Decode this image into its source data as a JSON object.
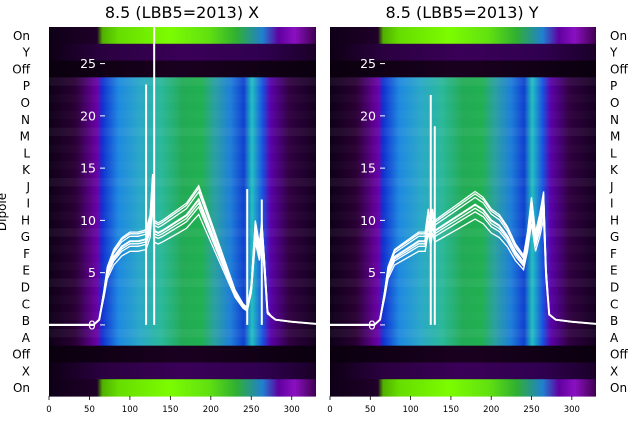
{
  "chart_data": [
    {
      "type": "heatmap",
      "title": "8.5 (LBB5=2013) X",
      "ylabel": "Dipole",
      "xlim": [
        0,
        330
      ],
      "x_ticks": [
        0,
        50,
        100,
        150,
        200,
        250,
        300
      ],
      "row_labels": [
        "On",
        "Y",
        "Off",
        "P",
        "O",
        "N",
        "M",
        "L",
        "K",
        "J",
        "I",
        "H",
        "G",
        "F",
        "E",
        "D",
        "C",
        "B",
        "A",
        "Off",
        "X",
        "On"
      ],
      "overlay_ylim": [
        -6.8,
        28.5
      ],
      "overlay_y_ticks": [
        0,
        5,
        10,
        15,
        20,
        25
      ],
      "overlay_series": {
        "x": [
          0,
          55,
          62,
          68,
          72,
          80,
          90,
          100,
          110,
          120,
          125,
          128,
          130,
          135,
          140,
          150,
          160,
          170,
          180,
          185,
          190,
          200,
          210,
          220,
          230,
          240,
          245,
          250,
          255,
          260,
          263,
          266,
          270,
          275,
          280,
          300,
          330
        ],
        "y": [
          0,
          0,
          0.5,
          3,
          5,
          6.5,
          7.5,
          8,
          8,
          8.2,
          9.5,
          13,
          9,
          8.8,
          9,
          9.5,
          10,
          10.5,
          11.5,
          12,
          11,
          9,
          7,
          5,
          3,
          1.8,
          1.5,
          3.5,
          9,
          7,
          9,
          6,
          1.2,
          0.8,
          0.5,
          0.3,
          0.1
        ],
        "spikes": [
          {
            "x": 120,
            "y": 23
          },
          {
            "x": 130,
            "y": 28.5
          },
          {
            "x": 245,
            "y": 13
          },
          {
            "x": 263,
            "y": 12
          }
        ]
      }
    },
    {
      "type": "heatmap",
      "title": "8.5 (LBB5=2013) Y",
      "xlim": [
        0,
        330
      ],
      "x_ticks": [
        0,
        50,
        100,
        150,
        200,
        250,
        300
      ],
      "row_labels": [
        "On",
        "Y",
        "Off",
        "P",
        "O",
        "N",
        "M",
        "L",
        "K",
        "J",
        "I",
        "H",
        "G",
        "F",
        "E",
        "D",
        "C",
        "B",
        "A",
        "Off",
        "X",
        "On"
      ],
      "overlay_ylim": [
        -6.8,
        28.5
      ],
      "overlay_y_ticks": [
        0,
        5,
        10,
        15,
        20,
        25
      ],
      "overlay_series": {
        "x": [
          0,
          55,
          62,
          68,
          72,
          80,
          90,
          100,
          110,
          118,
          122,
          125,
          127,
          130,
          140,
          150,
          160,
          170,
          180,
          190,
          200,
          210,
          220,
          230,
          240,
          245,
          250,
          255,
          260,
          265,
          268,
          272,
          280,
          300,
          330
        ],
        "y": [
          0,
          0,
          0.5,
          3,
          5,
          6.5,
          7,
          7.5,
          8,
          8,
          10,
          8.5,
          10,
          9,
          9.5,
          10,
          10.5,
          11,
          11.5,
          11,
          10,
          9.5,
          8.5,
          7,
          6,
          8,
          11,
          8,
          9.5,
          11.5,
          5,
          1,
          0.5,
          0.3,
          0.1
        ],
        "spikes": [
          {
            "x": 125,
            "y": 22
          },
          {
            "x": 130,
            "y": 19
          }
        ]
      }
    }
  ]
}
